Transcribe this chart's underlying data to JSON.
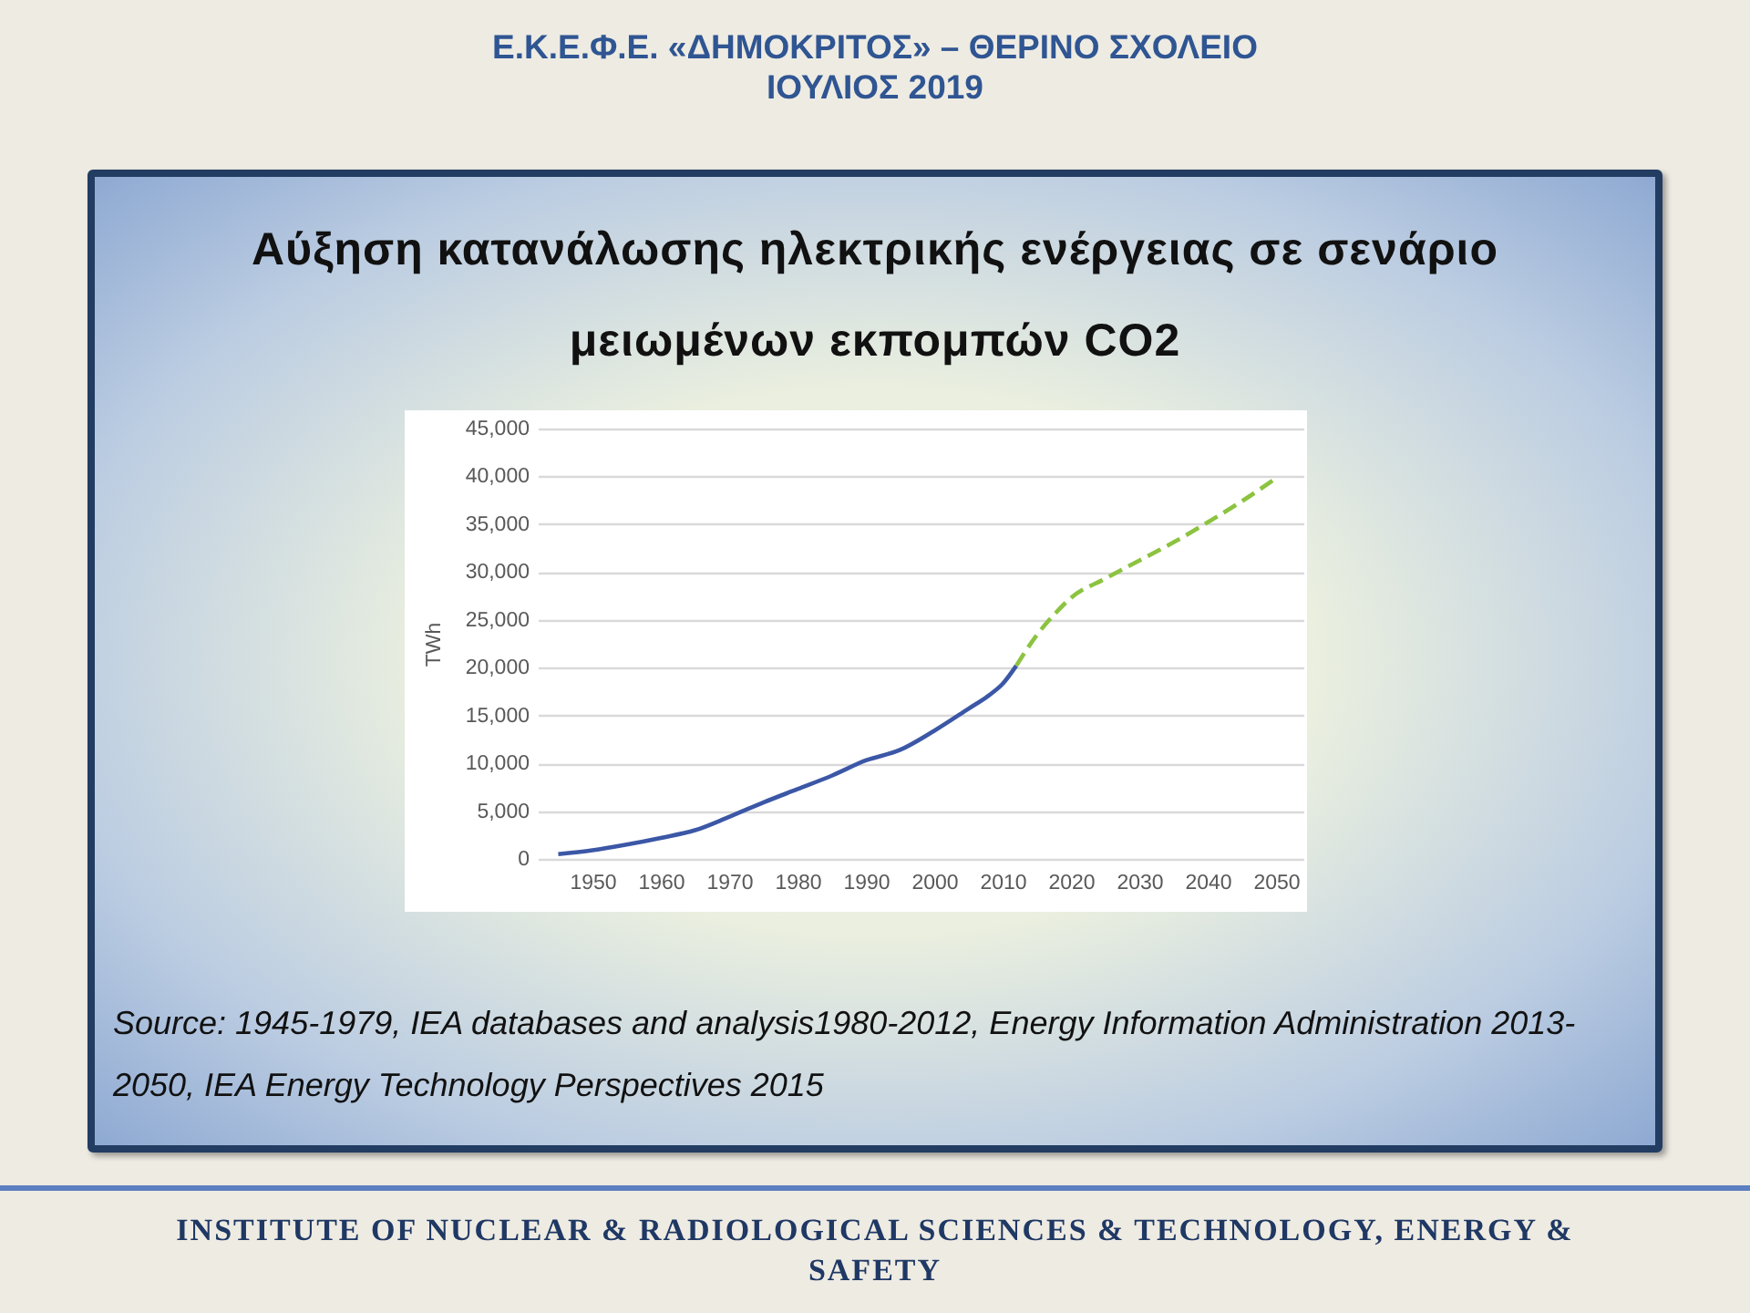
{
  "chart_data": {
    "type": "line",
    "title": "Αύξηση κατανάλωσης ηλεκτρικής ενέργειας σε σενάριο μειωμένων εκπομπών CO2",
    "ylabel": "TWh",
    "annotations": [
      "Ε.Κ.Ε.Φ.Ε. «ΔΗΜΟΚΡΙΤΟΣ» – ΘΕΡΙΝΟ ΣΧΟΛΕΙΟ",
      "ΙΟΥΛΙΟΣ 2019",
      "Source: 1945-1979, IEA databases and analysis1980-2012, Energy Information Administration 2013-2050, IEA Energy Technology Perspectives 2015",
      "INSTITUTE OF NUCLEAR & RADIOLOGICAL SCIENCES & TECHNOLOGY, ENERGY & SAFETY"
    ],
    "series": [
      {
        "color": "#3b57a6",
        "line_style": "solid",
        "x": [
          1945,
          1950,
          1955,
          1960,
          1965,
          1970,
          1975,
          1980,
          1985,
          1990,
          1995,
          2000,
          2005,
          2008,
          2010,
          2012
        ],
        "values": [
          500,
          900,
          1500,
          2200,
          3000,
          4400,
          5900,
          7300,
          8700,
          10300,
          11400,
          13400,
          15700,
          17100,
          18300,
          20200
        ]
      },
      {
        "color": "#8cc340",
        "line_style": "dashed",
        "x": [
          2012,
          2015,
          2018,
          2020,
          2025,
          2030,
          2035,
          2040,
          2045,
          2050
        ],
        "values": [
          20200,
          23400,
          25900,
          27300,
          29300,
          31200,
          33100,
          35200,
          37400,
          39800
        ]
      }
    ],
    "xlim": [
      1942,
      2054
    ],
    "xticks": [
      1950,
      1960,
      1970,
      1980,
      1990,
      2000,
      2010,
      2020,
      2030,
      2040,
      2050
    ],
    "ylim": [
      0,
      45000
    ],
    "yticks": [
      0,
      {
        "value": 5000,
        "label": "5,000"
      },
      {
        "value": 10000,
        "label": "10,000"
      },
      {
        "value": 15000,
        "label": "15,000"
      },
      {
        "value": 20000,
        "label": "20,000"
      },
      {
        "value": 25000,
        "label": "25,000"
      },
      {
        "value": 30000,
        "label": "30,000"
      },
      {
        "value": 35000,
        "label": "35,000"
      },
      {
        "value": 40000,
        "label": "40,000"
      },
      {
        "value": 45000,
        "label": "45,000"
      }
    ],
    "grid": "y"
  }
}
